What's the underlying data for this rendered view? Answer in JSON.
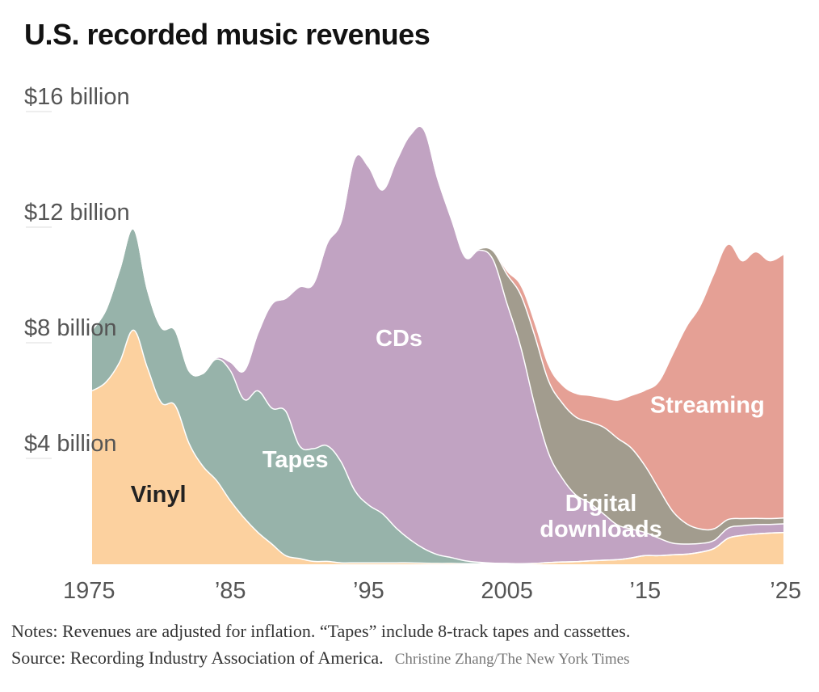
{
  "title": "U.S. recorded music revenues",
  "notes": "Notes: Revenues are adjusted for inflation. “Tapes” include 8-track tapes and cassettes.",
  "source": "Source: Recording Industry Association of America.",
  "credit": "Christine Zhang/The New York Times",
  "chart_data": {
    "type": "area",
    "stacked": true,
    "title": "U.S. recorded music revenues",
    "xlabel": "",
    "ylabel": "",
    "x": [
      1975,
      1976,
      1977,
      1978,
      1979,
      1980,
      1981,
      1982,
      1983,
      1984,
      1985,
      1986,
      1987,
      1988,
      1989,
      1990,
      1991,
      1992,
      1993,
      1994,
      1995,
      1996,
      1997,
      1998,
      1999,
      2000,
      2001,
      2002,
      2003,
      2004,
      2005,
      2006,
      2007,
      2008,
      2009,
      2010,
      2011,
      2012,
      2013,
      2014,
      2015,
      2016,
      2017,
      2018,
      2019,
      2020,
      2021,
      2022,
      2023,
      2024,
      2025
    ],
    "xlim": [
      1975,
      2025
    ],
    "ylim": [
      0,
      16
    ],
    "x_ticks": [
      1975,
      1985,
      1995,
      2005,
      2015,
      2025
    ],
    "x_tick_labels": [
      "1975",
      "’85",
      "’95",
      "2005",
      "’15",
      "’25"
    ],
    "y_ticks": [
      4,
      8,
      12,
      16
    ],
    "y_tick_labels": [
      "$4 billion",
      "$8 billion",
      "$12 billion",
      "$16 billion"
    ],
    "series": [
      {
        "name": "Vinyl",
        "label": "Vinyl",
        "color": "#fcd19f",
        "text_color": "#222222",
        "values": [
          6.0,
          6.3,
          7.0,
          8.1,
          6.8,
          5.6,
          5.5,
          4.2,
          3.4,
          2.9,
          2.2,
          1.6,
          1.1,
          0.7,
          0.3,
          0.2,
          0.1,
          0.1,
          0.05,
          0.05,
          0.05,
          0.05,
          0.05,
          0.05,
          0.04,
          0.03,
          0.03,
          0.02,
          0.02,
          0.02,
          0.02,
          0.02,
          0.03,
          0.06,
          0.08,
          0.09,
          0.12,
          0.14,
          0.16,
          0.22,
          0.3,
          0.3,
          0.33,
          0.35,
          0.42,
          0.55,
          0.9,
          1.0,
          1.05,
          1.08,
          1.1
        ]
      },
      {
        "name": "Tapes",
        "label": "Tapes",
        "color": "#97b3aa",
        "text_color": "#ffffff",
        "values": [
          2.1,
          2.5,
          3.2,
          3.5,
          2.7,
          2.6,
          2.6,
          2.5,
          3.2,
          4.2,
          4.5,
          4.1,
          4.9,
          4.7,
          5.0,
          3.9,
          3.9,
          4.0,
          3.5,
          2.5,
          2.0,
          1.7,
          1.2,
          0.8,
          0.5,
          0.3,
          0.2,
          0.1,
          0.05,
          0.02,
          0.01,
          0,
          0,
          0,
          0,
          0,
          0,
          0,
          0,
          0,
          0,
          0,
          0,
          0,
          0,
          0,
          0,
          0,
          0,
          0,
          0
        ]
      },
      {
        "name": "CDs",
        "label": "CDs",
        "color": "#c1a3c2",
        "text_color": "#ffffff",
        "values": [
          0,
          0,
          0,
          0,
          0,
          0,
          0,
          0,
          0,
          0.05,
          0.3,
          1.0,
          2.0,
          3.6,
          3.9,
          5.5,
          5.7,
          7.0,
          8.3,
          11.5,
          11.7,
          11.2,
          12.7,
          14.0,
          14.5,
          13.0,
          11.7,
          10.5,
          10.8,
          10.5,
          9.0,
          7.5,
          5.5,
          3.8,
          2.9,
          2.3,
          2.0,
          1.6,
          1.2,
          1.0,
          0.8,
          0.6,
          0.4,
          0.35,
          0.3,
          0.28,
          0.35,
          0.33,
          0.32,
          0.3,
          0.3
        ]
      },
      {
        "name": "Digital downloads",
        "label": "Digital downloads",
        "color": "#a29c8e",
        "text_color": "#ffffff",
        "values": [
          0,
          0,
          0,
          0,
          0,
          0,
          0,
          0,
          0,
          0,
          0,
          0,
          0,
          0,
          0,
          0,
          0,
          0,
          0,
          0,
          0,
          0,
          0,
          0,
          0,
          0,
          0,
          0,
          0.05,
          0.3,
          1.0,
          1.8,
          2.4,
          2.5,
          2.6,
          2.7,
          2.8,
          3.0,
          3.0,
          2.8,
          2.3,
          1.7,
          1.1,
          0.7,
          0.5,
          0.4,
          0.3,
          0.25,
          0.22,
          0.2,
          0.2
        ]
      },
      {
        "name": "Streaming",
        "label": "Streaming",
        "color": "#e5a095",
        "text_color": "#ffffff",
        "values": [
          0,
          0,
          0,
          0,
          0,
          0,
          0,
          0,
          0,
          0,
          0,
          0,
          0,
          0,
          0,
          0,
          0,
          0,
          0,
          0,
          0,
          0,
          0,
          0,
          0,
          0,
          0,
          0,
          0,
          0,
          0.1,
          0.3,
          0.4,
          0.5,
          0.6,
          0.8,
          0.9,
          1.0,
          1.3,
          1.8,
          2.6,
          3.7,
          5.4,
          6.8,
          7.7,
          8.8,
          9.5,
          8.9,
          9.2,
          8.9,
          9.1
        ]
      }
    ]
  }
}
